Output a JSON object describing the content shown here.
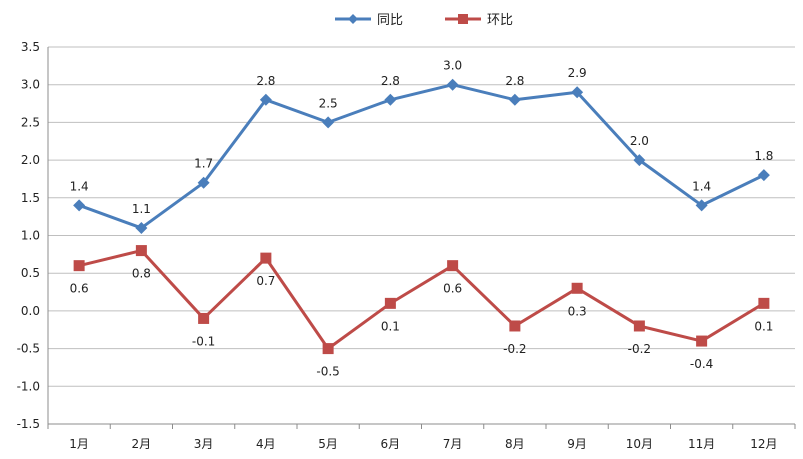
{
  "chart_data": {
    "type": "line",
    "categories": [
      "1月",
      "2月",
      "3月",
      "4月",
      "5月",
      "6月",
      "7月",
      "8月",
      "9月",
      "10月",
      "11月",
      "12月"
    ],
    "series": [
      {
        "name": "同比",
        "color": "#4a7ebb",
        "marker": "diamond",
        "values": [
          1.4,
          1.1,
          1.7,
          2.8,
          2.5,
          2.8,
          3.0,
          2.8,
          2.9,
          2.0,
          1.4,
          1.8
        ],
        "labels": [
          "1.4",
          "1.1",
          "1.7",
          "2.8",
          "2.5",
          "2.8",
          "3.0",
          "2.8",
          "2.9",
          "2.0",
          "1.4",
          "1.8"
        ]
      },
      {
        "name": "环比",
        "color": "#be4b48",
        "marker": "square",
        "values": [
          0.6,
          0.8,
          -0.1,
          0.7,
          -0.5,
          0.1,
          0.6,
          -0.2,
          0.3,
          -0.2,
          -0.4,
          0.1
        ],
        "labels": [
          "0.6",
          "0.8",
          "-0.1",
          "0.7",
          "-0.5",
          "0.1",
          "0.6",
          "-0.2",
          "0.3",
          "-0.2",
          "-0.4",
          "0.1"
        ]
      }
    ],
    "ylim": [
      -1.5,
      3.5
    ],
    "yticks": [
      "3.5",
      "3.0",
      "2.5",
      "2.0",
      "1.5",
      "1.0",
      "0.5",
      "0.0",
      "-0.5",
      "-1.0",
      "-1.5"
    ],
    "grid": true,
    "legend": "top-center"
  }
}
